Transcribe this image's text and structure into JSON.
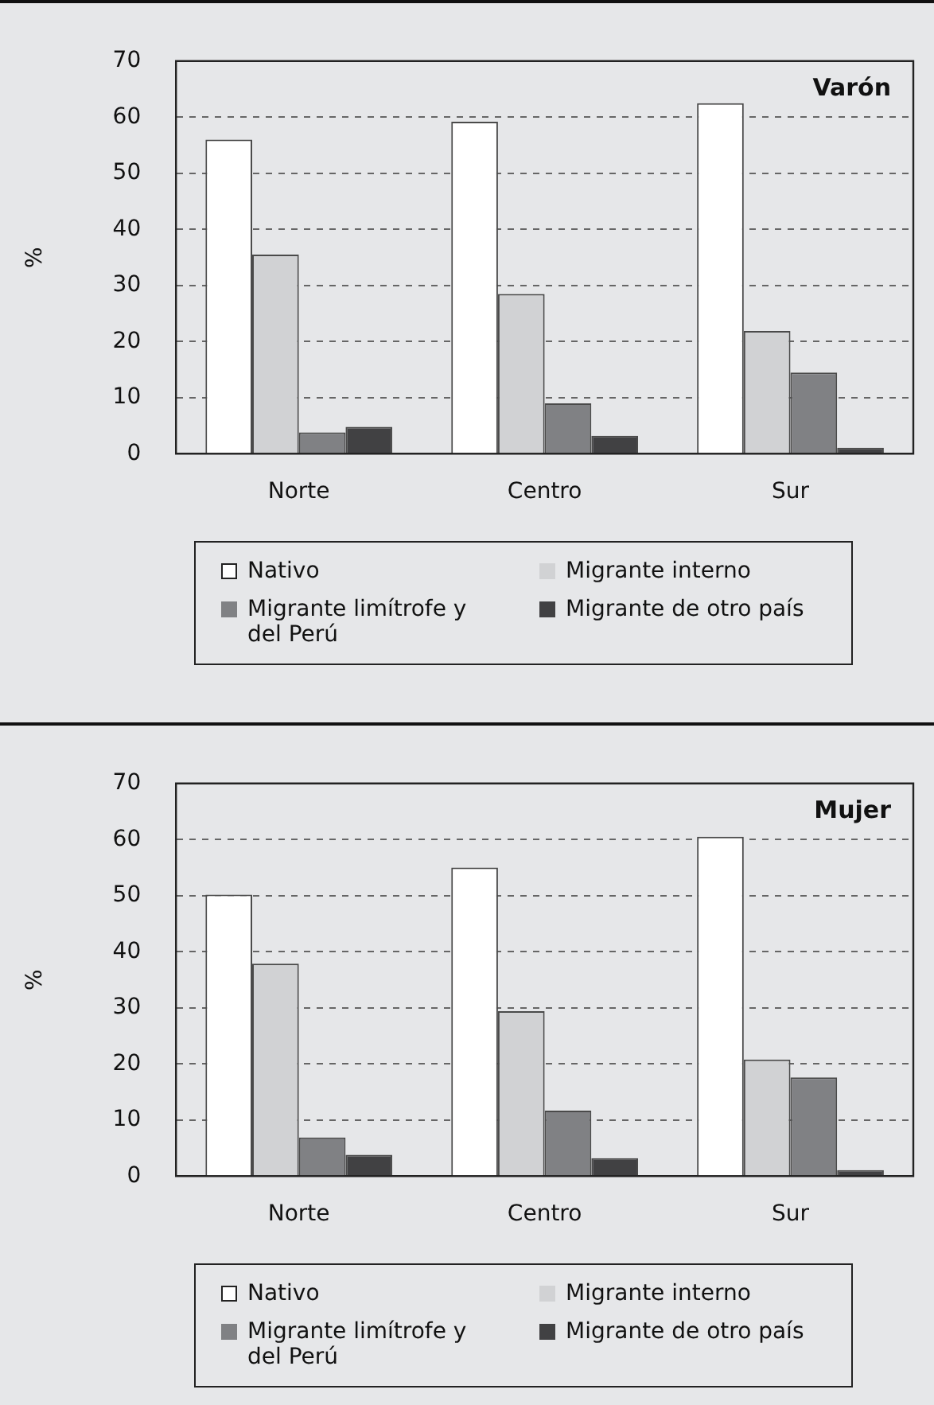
{
  "chart_data": [
    {
      "type": "bar",
      "title": "Varón",
      "ylabel": "%",
      "categories": [
        "Norte",
        "Centro",
        "Sur"
      ],
      "ylim": [
        0,
        70
      ],
      "yticks": [
        0,
        10,
        20,
        30,
        40,
        50,
        60,
        70
      ],
      "grid": "y",
      "legend": "bottom",
      "series": [
        {
          "name": "Nativo",
          "color": "#ffffff",
          "values": [
            56.0,
            59.2,
            62.5
          ]
        },
        {
          "name": "Migrante interno",
          "color": "#d1d2d4",
          "values": [
            35.5,
            28.5,
            21.9
          ]
        },
        {
          "name": "Migrante limítrofe y del Perú",
          "color": "#808184",
          "values": [
            3.8,
            9.0,
            14.5
          ]
        },
        {
          "name": "Migrante de otro país",
          "color": "#414143",
          "values": [
            4.8,
            3.2,
            1.1
          ]
        }
      ]
    },
    {
      "type": "bar",
      "title": "Mujer",
      "ylabel": "%",
      "categories": [
        "Norte",
        "Centro",
        "Sur"
      ],
      "ylim": [
        0,
        70
      ],
      "yticks": [
        0,
        10,
        20,
        30,
        40,
        50,
        60,
        70
      ],
      "grid": "y",
      "legend": "bottom",
      "series": [
        {
          "name": "Nativo",
          "color": "#ffffff",
          "values": [
            50.2,
            55.0,
            60.5
          ]
        },
        {
          "name": "Migrante interno",
          "color": "#d1d2d4",
          "values": [
            37.9,
            29.4,
            20.8
          ]
        },
        {
          "name": "Migrante limítrofe y del Perú",
          "color": "#808184",
          "values": [
            6.9,
            11.7,
            17.6
          ]
        },
        {
          "name": "Migrante de otro país",
          "color": "#414143",
          "values": [
            3.8,
            3.2,
            1.1
          ]
        }
      ]
    }
  ]
}
